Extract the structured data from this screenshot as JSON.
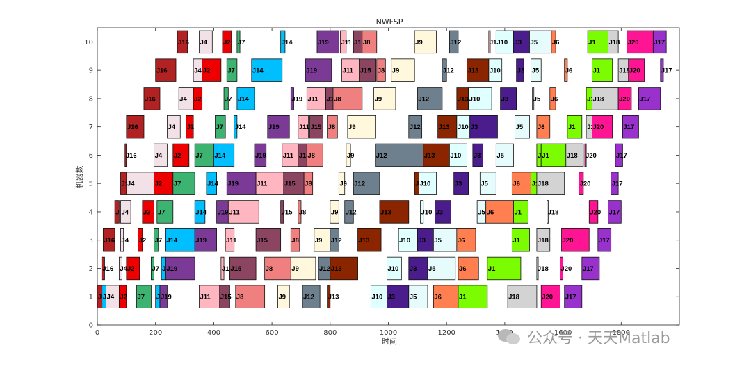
{
  "chart_data": {
    "type": "gantt",
    "title": "NWFSP",
    "xlabel": "时间",
    "ylabel": "机器数",
    "xlim": [
      0,
      2000
    ],
    "ylim": [
      0,
      10.5
    ],
    "xticks": [
      0,
      200,
      400,
      600,
      800,
      1000,
      1200,
      1400,
      1600,
      1800
    ],
    "yticks": [
      0,
      1,
      2,
      3,
      4,
      5,
      6,
      7,
      8,
      9,
      10
    ],
    "colors": {
      "J1": "#7CFC00",
      "J2": "#EE0000",
      "J3": "#4B1C8C",
      "J4": "#F2E1E6",
      "J5": "#E6FBFB",
      "J6": "#FF7F50",
      "J7": "#3CB371",
      "J8": "#F08080",
      "J9": "#FFF8DC",
      "J10": "#E0FFFF",
      "J11": "#FFB6C1",
      "J12": "#6E7F8E",
      "J13": "#8B2500",
      "J14": "#00BFFF",
      "J15": "#8B4560",
      "J16": "#B22222",
      "J17": "#9932CC",
      "J18": "#D3D3D3",
      "J19": "#7B3A96",
      "J20": "#FF1493"
    },
    "machines": [
      {
        "machine": 1,
        "tasks": [
          [
            "J16",
            0,
            16
          ],
          [
            "J14",
            16,
            30
          ],
          [
            "J4",
            30,
            75
          ],
          [
            "J2",
            75,
            100
          ],
          [
            "J7",
            135,
            185
          ],
          [
            "J14",
            200,
            215
          ],
          [
            "J19",
            215,
            240
          ],
          [
            "J11",
            350,
            420
          ],
          [
            "J15",
            420,
            455
          ],
          [
            "J8",
            475,
            575
          ],
          [
            "J9",
            620,
            660
          ],
          [
            "J12",
            705,
            765
          ],
          [
            "J13",
            790,
            800
          ],
          [
            "J10",
            940,
            995
          ],
          [
            "J3",
            995,
            1070
          ],
          [
            "J5",
            1070,
            1135
          ],
          [
            "J6",
            1155,
            1240
          ],
          [
            "J1",
            1240,
            1340
          ],
          [
            "J18",
            1410,
            1510
          ],
          [
            "J20",
            1525,
            1590
          ],
          [
            "J17",
            1605,
            1665
          ]
        ]
      },
      {
        "machine": 2,
        "tasks": [
          [
            "J16",
            15,
            25
          ],
          [
            "J4",
            75,
            85
          ],
          [
            "J2",
            100,
            145
          ],
          [
            "J7",
            185,
            195
          ],
          [
            "J14",
            220,
            235
          ],
          [
            "J19",
            235,
            335
          ],
          [
            "J11",
            425,
            435
          ],
          [
            "J15",
            455,
            545
          ],
          [
            "J8",
            575,
            665
          ],
          [
            "J9",
            665,
            750
          ],
          [
            "J12",
            760,
            800
          ],
          [
            "J13",
            800,
            895
          ],
          [
            "J10",
            995,
            1045
          ],
          [
            "J3",
            1070,
            1135
          ],
          [
            "J5",
            1135,
            1230
          ],
          [
            "J6",
            1240,
            1310
          ],
          [
            "J1",
            1340,
            1455
          ],
          [
            "J18",
            1510,
            1515
          ],
          [
            "J20",
            1590,
            1600
          ],
          [
            "J17",
            1665,
            1725
          ]
        ]
      },
      {
        "machine": 3,
        "tasks": [
          [
            "J16",
            20,
            60
          ],
          [
            "J4",
            80,
            90
          ],
          [
            "J2",
            140,
            155
          ],
          [
            "J7",
            195,
            210
          ],
          [
            "J14",
            235,
            335
          ],
          [
            "J19",
            335,
            410
          ],
          [
            "J11",
            440,
            470
          ],
          [
            "J15",
            545,
            630
          ],
          [
            "J8",
            665,
            695
          ],
          [
            "J9",
            745,
            800
          ],
          [
            "J12",
            800,
            830
          ],
          [
            "J13",
            895,
            975
          ],
          [
            "J10",
            1035,
            1100
          ],
          [
            "J3",
            1100,
            1155
          ],
          [
            "J5",
            1155,
            1235
          ],
          [
            "J6",
            1235,
            1300
          ],
          [
            "J1",
            1425,
            1485
          ],
          [
            "J18",
            1510,
            1555
          ],
          [
            "J20",
            1595,
            1690
          ],
          [
            "J17",
            1720,
            1765
          ]
        ]
      },
      {
        "machine": 4,
        "tasks": [
          [
            "J16",
            60,
            75
          ],
          [
            "J4",
            80,
            115
          ],
          [
            "J2",
            155,
            195
          ],
          [
            "J7",
            205,
            260
          ],
          [
            "J14",
            335,
            370
          ],
          [
            "J19",
            410,
            450
          ],
          [
            "J11",
            450,
            555
          ],
          [
            "J15",
            630,
            640
          ],
          [
            "J8",
            690,
            700
          ],
          [
            "J9",
            800,
            830
          ],
          [
            "J12",
            850,
            880
          ],
          [
            "J13",
            970,
            1070
          ],
          [
            "J10",
            1110,
            1120
          ],
          [
            "J3",
            1160,
            1215
          ],
          [
            "J5",
            1305,
            1335
          ],
          [
            "J6",
            1335,
            1430
          ],
          [
            "J1",
            1430,
            1480
          ],
          [
            "J18",
            1545,
            1550
          ],
          [
            "J20",
            1690,
            1720
          ],
          [
            "J17",
            1755,
            1800
          ]
        ]
      },
      {
        "machine": 5,
        "tasks": [
          [
            "J16",
            80,
            100
          ],
          [
            "J4",
            100,
            195
          ],
          [
            "J2",
            195,
            260
          ],
          [
            "J7",
            260,
            335
          ],
          [
            "J14",
            375,
            410
          ],
          [
            "J19",
            445,
            545
          ],
          [
            "J11",
            545,
            640
          ],
          [
            "J15",
            640,
            710
          ],
          [
            "J8",
            710,
            740
          ],
          [
            "J9",
            830,
            850
          ],
          [
            "J12",
            880,
            970
          ],
          [
            "J13",
            1090,
            1105
          ],
          [
            "J10",
            1105,
            1165
          ],
          [
            "J3",
            1225,
            1275
          ],
          [
            "J5",
            1315,
            1370
          ],
          [
            "J6",
            1425,
            1490
          ],
          [
            "J1",
            1490,
            1510
          ],
          [
            "J18",
            1510,
            1605
          ],
          [
            "J20",
            1655,
            1670
          ],
          [
            "J17",
            1765,
            1790
          ]
        ]
      },
      {
        "machine": 6,
        "tasks": [
          [
            "J16",
            95,
            100
          ],
          [
            "J4",
            195,
            240
          ],
          [
            "J2",
            260,
            315
          ],
          [
            "J7",
            335,
            400
          ],
          [
            "J14",
            400,
            470
          ],
          [
            "J19",
            540,
            580
          ],
          [
            "J11",
            635,
            690
          ],
          [
            "J15",
            690,
            720
          ],
          [
            "J8",
            720,
            775
          ],
          [
            "J9",
            855,
            870
          ],
          [
            "J12",
            955,
            1120
          ],
          [
            "J13",
            1120,
            1210
          ],
          [
            "J10",
            1210,
            1270
          ],
          [
            "J3",
            1290,
            1325
          ],
          [
            "J5",
            1370,
            1430
          ],
          [
            "J1",
            1510,
            1525
          ],
          [
            "J1",
            1525,
            1610
          ],
          [
            "J18",
            1610,
            1670
          ],
          [
            "J20",
            1675,
            1680
          ],
          [
            "J17",
            1780,
            1805
          ]
        ]
      },
      {
        "machine": 7,
        "tasks": [
          [
            "J16",
            100,
            160
          ],
          [
            "J4",
            240,
            285
          ],
          [
            "J2",
            305,
            330
          ],
          [
            "J7",
            405,
            440
          ],
          [
            "J14",
            470,
            480
          ],
          [
            "J19",
            585,
            660
          ],
          [
            "J11",
            690,
            725
          ],
          [
            "J15",
            730,
            775
          ],
          [
            "J8",
            790,
            825
          ],
          [
            "J9",
            860,
            955
          ],
          [
            "J12",
            1070,
            1115
          ],
          [
            "J13",
            1170,
            1235
          ],
          [
            "J10",
            1235,
            1280
          ],
          [
            "J3",
            1280,
            1375
          ],
          [
            "J5",
            1435,
            1485
          ],
          [
            "J6",
            1510,
            1555
          ],
          [
            "J1",
            1615,
            1665
          ],
          [
            "J18",
            1680,
            1700
          ],
          [
            "J20",
            1700,
            1770
          ],
          [
            "J17",
            1805,
            1860
          ]
        ]
      },
      {
        "machine": 8,
        "tasks": [
          [
            "J16",
            160,
            215
          ],
          [
            "J4",
            280,
            330
          ],
          [
            "J2",
            330,
            360
          ],
          [
            "J7",
            435,
            450
          ],
          [
            "J14",
            480,
            540
          ],
          [
            "J19",
            665,
            675
          ],
          [
            "J11",
            720,
            785
          ],
          [
            "J15",
            785,
            810
          ],
          [
            "J8",
            810,
            910
          ],
          [
            "J9",
            950,
            1025
          ],
          [
            "J12",
            1100,
            1185
          ],
          [
            "J13",
            1235,
            1275
          ],
          [
            "J10",
            1275,
            1355
          ],
          [
            "J3",
            1385,
            1440
          ],
          [
            "J5",
            1495,
            1500
          ],
          [
            "J6",
            1555,
            1575
          ],
          [
            "J1",
            1680,
            1700
          ],
          [
            "J18",
            1700,
            1790
          ],
          [
            "J20",
            1790,
            1835
          ],
          [
            "J17",
            1860,
            1935
          ]
        ]
      },
      {
        "machine": 9,
        "tasks": [
          [
            "J16",
            200,
            270
          ],
          [
            "J4",
            330,
            360
          ],
          [
            "J2",
            360,
            425
          ],
          [
            "J7",
            445,
            480
          ],
          [
            "J14",
            530,
            635
          ],
          [
            "J19",
            715,
            805
          ],
          [
            "J11",
            840,
            900
          ],
          [
            "J15",
            900,
            955
          ],
          [
            "J8",
            960,
            990
          ],
          [
            "J9",
            1010,
            1090
          ],
          [
            "J12",
            1185,
            1200
          ],
          [
            "J13",
            1270,
            1345
          ],
          [
            "J10",
            1345,
            1390
          ],
          [
            "J3",
            1440,
            1465
          ],
          [
            "J5",
            1490,
            1525
          ],
          [
            "J6",
            1605,
            1615
          ],
          [
            "J1",
            1700,
            1770
          ],
          [
            "J18",
            1790,
            1825
          ],
          [
            "J20",
            1825,
            1880
          ],
          [
            "J17",
            1935,
            1945
          ]
        ]
      },
      {
        "machine": 10,
        "tasks": [
          [
            "J16",
            275,
            310
          ],
          [
            "J4",
            350,
            395
          ],
          [
            "J2",
            430,
            460
          ],
          [
            "J7",
            480,
            490
          ],
          [
            "J14",
            630,
            645
          ],
          [
            "J19",
            755,
            830
          ],
          [
            "J11",
            835,
            855
          ],
          [
            "J15",
            880,
            910
          ],
          [
            "J8",
            910,
            960
          ],
          [
            "J9",
            1090,
            1165
          ],
          [
            "J12",
            1210,
            1240
          ],
          [
            "J11",
            1345,
            1350
          ],
          [
            "J10",
            1370,
            1430
          ],
          [
            "J3",
            1430,
            1485
          ],
          [
            "J5",
            1485,
            1560
          ],
          [
            "J6",
            1560,
            1575
          ],
          [
            "J1",
            1685,
            1755
          ],
          [
            "J18",
            1755,
            1790
          ],
          [
            "J20",
            1820,
            1910
          ],
          [
            "J17",
            1910,
            1955
          ]
        ]
      }
    ]
  },
  "watermark": {
    "text": "公众号 · 天天Matlab"
  }
}
